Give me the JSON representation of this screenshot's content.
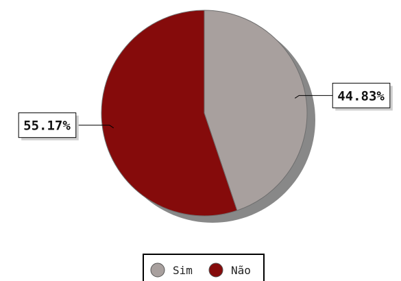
{
  "chart_data": {
    "type": "pie",
    "title": "",
    "categories": [
      "Sim",
      "Não"
    ],
    "values": [
      44.83,
      55.17
    ],
    "data_labels": [
      "44.83%",
      "55.17%"
    ],
    "colors": [
      "#a8a09e",
      "#850b0b"
    ],
    "shadow_color": "#888888",
    "legend_position": "bottom-center"
  }
}
